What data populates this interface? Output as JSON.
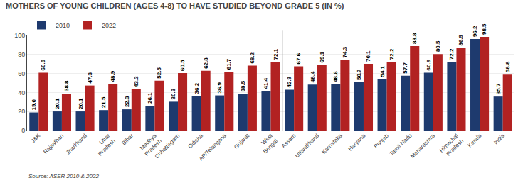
{
  "chart_data": {
    "type": "bar",
    "title": "MOTHERS OF YOUNG CHILDREN (AGES 4-8) TO HAVE STUDIED BEYOND GRADE 5 (IN %)",
    "categories": [
      "J&K",
      "Rajasthan",
      "Jharkhand",
      "Uttar\nPradesh",
      "Bihar",
      "Madhya\nPradesh",
      "Chhattisgarh",
      "Odisha",
      "AP/Telangana",
      "Gujarat",
      "West\nBengal",
      "Assam",
      "Uttarakhand",
      "Karnataka",
      "Haryana",
      "Punjab",
      "Tamil Nadu",
      "Maharashtra",
      "Himachal\nPradesh",
      "Kerala",
      "India"
    ],
    "series": [
      {
        "name": "2010",
        "color": "#1e3a6e",
        "values": [
          19.0,
          20.1,
          20.1,
          21.5,
          22.3,
          26.1,
          30.3,
          36.2,
          36.9,
          38.5,
          41.4,
          42.9,
          48.4,
          48.6,
          50.7,
          54.1,
          57.7,
          60.9,
          72.2,
          96.2,
          35.7
        ],
        "value_labels": [
          "19.0",
          "20.1",
          "20.1",
          "21.5",
          "22.3",
          "26.1",
          "30.3",
          "36.2",
          "36.9",
          "38.5",
          "41.4",
          "42.9",
          "48.4",
          "48.6",
          "50.7",
          "54.1",
          "57.7",
          "60.9",
          "72.2",
          "96.2",
          "35.7"
        ]
      },
      {
        "name": "2022",
        "color": "#b22222",
        "values": [
          60.9,
          38.8,
          47.3,
          48.9,
          43.3,
          52.5,
          60.5,
          62.8,
          61.7,
          68.2,
          72.1,
          67.6,
          69.1,
          74.3,
          70.1,
          72.2,
          88.8,
          80.5,
          86.9,
          98.5,
          58.8
        ],
        "value_labels": [
          "60.9",
          "38.8",
          "47.3",
          "48.9",
          "43.3",
          "52.5",
          "60.5",
          "62.8",
          "61.7",
          "68.2",
          "72.1",
          "67.6",
          "69.1",
          "74.3",
          "70.1",
          "72.2",
          "88.8",
          "80.5",
          "86.9",
          "98.5",
          "58.8"
        ]
      }
    ],
    "ylim": [
      0,
      100
    ],
    "yticks": [
      0,
      20,
      40,
      60,
      80,
      100
    ],
    "grid": true,
    "legend": "upper left",
    "data_labels": true,
    "annotations": [
      "Source: ASER 2010 & 2022"
    ]
  }
}
